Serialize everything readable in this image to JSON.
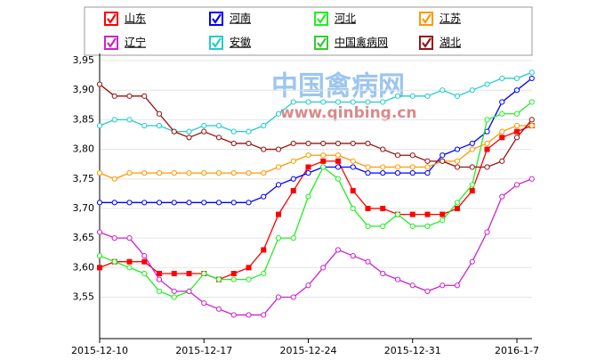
{
  "chart_data": {
    "type": "line",
    "watermark": [
      "中国禽病网",
      "www.qinbing.cn"
    ],
    "categories": [
      "2015-12-10",
      null,
      null,
      null,
      null,
      null,
      null,
      "2015-12-17",
      null,
      null,
      null,
      null,
      null,
      null,
      "2015-12-24",
      null,
      null,
      null,
      null,
      null,
      null,
      "2015-12-31",
      null,
      null,
      null,
      null,
      null,
      null,
      "2016-1-7",
      null
    ],
    "ylim": [
      3.48,
      3.95
    ],
    "yticks": [
      {
        "value": 3.55,
        "label": "3,55"
      },
      {
        "value": 3.6,
        "label": "3,60"
      },
      {
        "value": 3.65,
        "label": "3,65"
      },
      {
        "value": 3.7,
        "label": "3,70"
      },
      {
        "value": 3.75,
        "label": "3,75"
      },
      {
        "value": 3.8,
        "label": "3,80"
      },
      {
        "value": 3.85,
        "label": "3,85"
      },
      {
        "value": 3.9,
        "label": "3,90"
      },
      {
        "value": 3.95,
        "label": "3,95"
      }
    ],
    "grid": true,
    "series": [
      {
        "name": "山东",
        "color": "#ff0000",
        "marker": "square",
        "values": [
          3.6,
          3.61,
          3.61,
          3.61,
          3.59,
          3.59,
          3.59,
          3.59,
          3.58,
          3.59,
          3.6,
          3.63,
          3.69,
          3.73,
          3.77,
          3.78,
          3.78,
          3.73,
          3.7,
          3.7,
          3.69,
          3.69,
          3.69,
          3.69,
          3.7,
          3.73,
          3.8,
          3.82,
          3.83,
          3.84
        ]
      },
      {
        "name": "河南",
        "color": "#0000ff",
        "marker": "circle",
        "values": [
          3.71,
          3.71,
          3.71,
          3.71,
          3.71,
          3.71,
          3.71,
          3.71,
          3.71,
          3.71,
          3.71,
          3.72,
          3.74,
          3.75,
          3.76,
          3.77,
          3.77,
          3.77,
          3.76,
          3.76,
          3.76,
          3.76,
          3.76,
          3.79,
          3.8,
          3.81,
          3.83,
          3.88,
          3.9,
          3.92
        ]
      },
      {
        "name": "河北",
        "color": "#22ee22",
        "marker": "circle",
        "values": [
          3.62,
          3.61,
          3.6,
          3.59,
          3.56,
          3.55,
          3.56,
          3.59,
          3.58,
          3.58,
          3.58,
          3.59,
          3.65,
          3.65,
          3.72,
          3.77,
          3.75,
          3.7,
          3.67,
          3.67,
          3.69,
          3.67,
          3.67,
          3.68,
          3.71,
          3.74,
          3.85,
          3.86,
          3.86,
          3.88
        ]
      },
      {
        "name": "江苏",
        "color": "#ff9900",
        "marker": "circle",
        "values": [
          3.76,
          3.75,
          3.76,
          3.76,
          3.76,
          3.76,
          3.76,
          3.76,
          3.76,
          3.76,
          3.76,
          3.76,
          3.77,
          3.78,
          3.79,
          3.79,
          3.79,
          3.78,
          3.77,
          3.77,
          3.77,
          3.77,
          3.77,
          3.78,
          3.78,
          3.8,
          3.81,
          3.83,
          3.84,
          3.84
        ]
      },
      {
        "name": "辽宁",
        "color": "#cc22cc",
        "marker": "circle",
        "values": [
          3.66,
          3.65,
          3.65,
          3.62,
          3.58,
          3.56,
          3.56,
          3.54,
          3.53,
          3.52,
          3.52,
          3.52,
          3.55,
          3.55,
          3.57,
          3.6,
          3.63,
          3.62,
          3.61,
          3.59,
          3.58,
          3.57,
          3.56,
          3.57,
          3.57,
          3.61,
          3.66,
          3.72,
          3.74,
          3.75
        ]
      },
      {
        "name": "安徽",
        "color": "#22cccc",
        "marker": "circle",
        "values": [
          3.84,
          3.85,
          3.85,
          3.84,
          3.84,
          3.83,
          3.83,
          3.84,
          3.84,
          3.83,
          3.83,
          3.84,
          3.86,
          3.88,
          3.88,
          3.88,
          3.88,
          3.88,
          3.88,
          3.88,
          3.89,
          3.89,
          3.89,
          3.9,
          3.89,
          3.9,
          3.91,
          3.92,
          3.92,
          3.93
        ]
      },
      {
        "name": "中国禽病网",
        "color": "#33cc33",
        "marker": "circle",
        "values": [
          null,
          null,
          null,
          null,
          null,
          null,
          null,
          null,
          null,
          null,
          null,
          null,
          null,
          null,
          null,
          null,
          null,
          null,
          null,
          null,
          null,
          null,
          null,
          null,
          null,
          null,
          null,
          null,
          null,
          null
        ]
      },
      {
        "name": "湖北",
        "color": "#991111",
        "marker": "circle",
        "values": [
          3.91,
          3.89,
          3.89,
          3.89,
          3.86,
          3.83,
          3.82,
          3.83,
          3.82,
          3.81,
          3.81,
          3.8,
          3.8,
          3.81,
          3.81,
          3.81,
          3.81,
          3.81,
          3.81,
          3.8,
          3.79,
          3.79,
          3.78,
          3.78,
          3.77,
          3.77,
          3.77,
          3.78,
          3.82,
          3.85
        ]
      }
    ]
  }
}
